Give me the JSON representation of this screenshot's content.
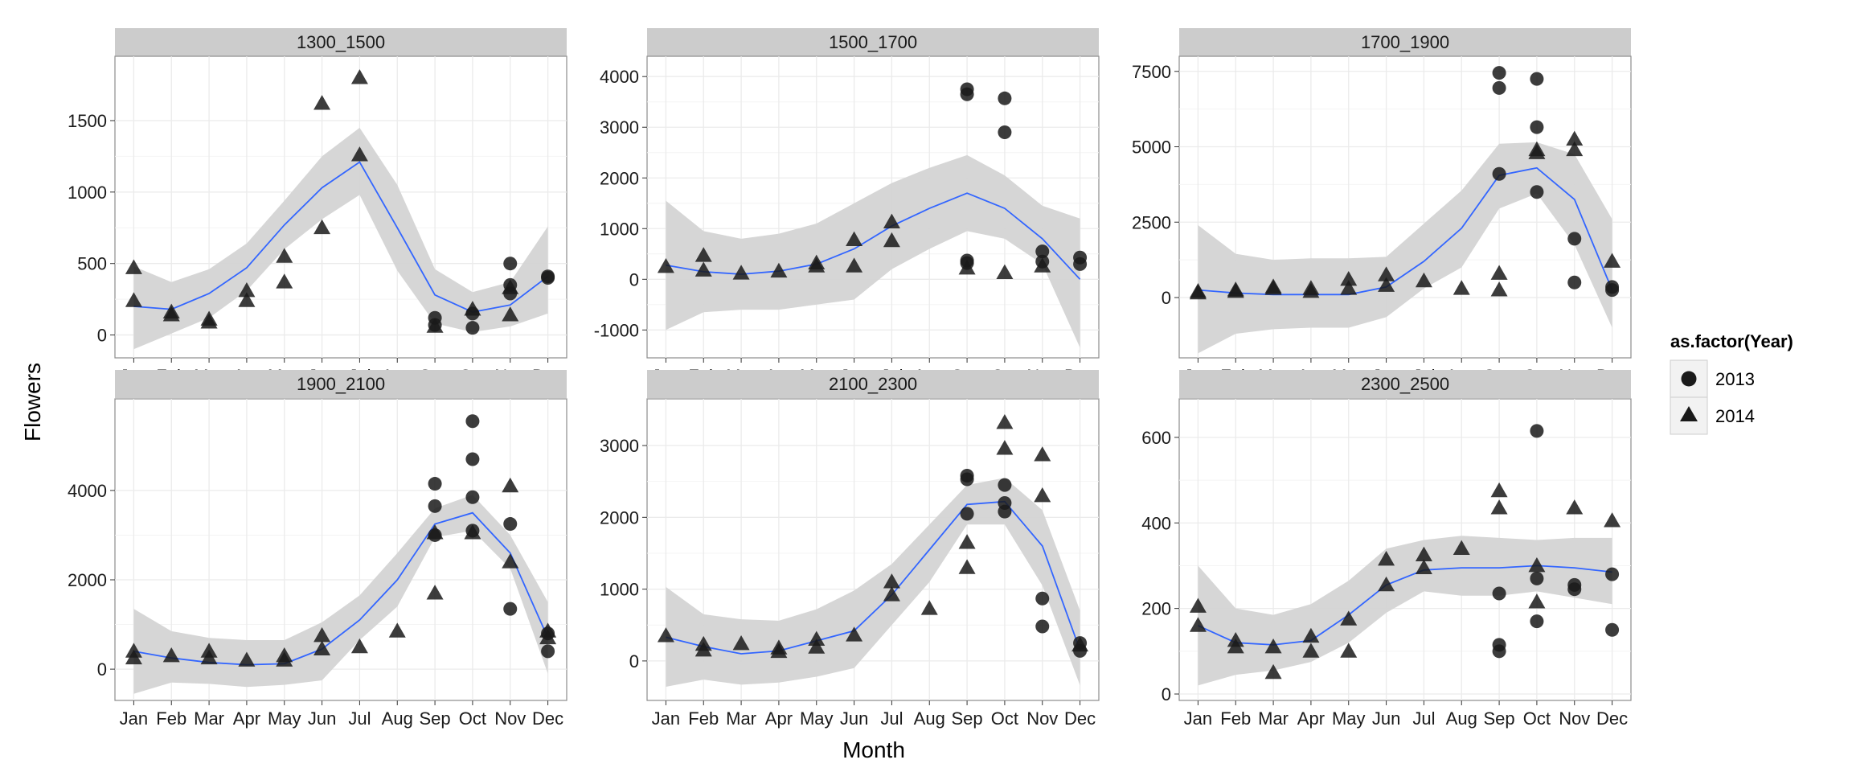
{
  "chart_data": {
    "type": "scatter",
    "facet_type": "faceted scatter with smoothed trend line and confidence band",
    "xlabel": "Month",
    "ylabel": "Flowers",
    "months": [
      "Jan",
      "Feb",
      "Mar",
      "Apr",
      "May",
      "Jun",
      "Jul",
      "Aug",
      "Sep",
      "Oct",
      "Nov",
      "Dec"
    ],
    "legend": {
      "title": "as.factor(Year)",
      "entries": [
        {
          "label": "2013",
          "shape": "circle"
        },
        {
          "label": "2014",
          "shape": "triangle"
        }
      ]
    },
    "colors": {
      "trend": "#3366ff",
      "band": "#d4d4d4",
      "points": "#1a1a1a",
      "strip": "#cccccc",
      "grid": "#ebebeb"
    },
    "panels": [
      {
        "label": "1300_1500",
        "ylim": [
          -160,
          1950
        ],
        "yticks": [
          0,
          500,
          1000,
          1500
        ],
        "trend": [
          200,
          180,
          290,
          470,
          770,
          1030,
          1210,
          750,
          280,
          160,
          210,
          410
        ],
        "band_low": [
          -100,
          10,
          120,
          310,
          600,
          810,
          980,
          450,
          80,
          20,
          60,
          150
        ],
        "band_high": [
          480,
          370,
          460,
          640,
          940,
          1250,
          1450,
          1050,
          460,
          300,
          370,
          760
        ],
        "points_2013": [
          [
            9,
            120
          ],
          [
            9,
            70
          ],
          [
            10,
            50
          ],
          [
            10,
            150
          ],
          [
            11,
            500
          ],
          [
            11,
            290
          ],
          [
            11,
            350
          ],
          [
            12,
            410
          ],
          [
            12,
            400
          ]
        ],
        "points_2014": [
          [
            1,
            470
          ],
          [
            1,
            240
          ],
          [
            2,
            160
          ],
          [
            2,
            140
          ],
          [
            3,
            110
          ],
          [
            3,
            90
          ],
          [
            4,
            310
          ],
          [
            4,
            240
          ],
          [
            5,
            550
          ],
          [
            5,
            370
          ],
          [
            6,
            1620
          ],
          [
            6,
            750
          ],
          [
            7,
            1800
          ],
          [
            7,
            1260
          ],
          [
            9,
            60
          ],
          [
            10,
            180
          ],
          [
            11,
            140
          ],
          [
            11,
            330
          ]
        ]
      },
      {
        "label": "1500_1700",
        "ylim": [
          -1550,
          4400
        ],
        "yticks": [
          -1000,
          0,
          1000,
          2000,
          3000,
          4000
        ],
        "trend": [
          280,
          150,
          100,
          160,
          300,
          600,
          1050,
          1400,
          1700,
          1400,
          800,
          0
        ],
        "band_low": [
          -1000,
          -650,
          -600,
          -600,
          -500,
          -400,
          200,
          600,
          950,
          800,
          300,
          -1350
        ],
        "band_high": [
          1550,
          950,
          800,
          900,
          1100,
          1500,
          1900,
          2200,
          2450,
          2050,
          1450,
          1200
        ],
        "points_2013": [
          [
            9,
            3750
          ],
          [
            9,
            3650
          ],
          [
            9,
            370
          ],
          [
            9,
            320
          ],
          [
            10,
            3570
          ],
          [
            10,
            2900
          ],
          [
            11,
            550
          ],
          [
            11,
            350
          ],
          [
            12,
            430
          ],
          [
            12,
            300
          ]
        ],
        "points_2014": [
          [
            1,
            250
          ],
          [
            2,
            470
          ],
          [
            2,
            180
          ],
          [
            3,
            120
          ],
          [
            4,
            160
          ],
          [
            5,
            260
          ],
          [
            5,
            320
          ],
          [
            6,
            780
          ],
          [
            6,
            260
          ],
          [
            7,
            1130
          ],
          [
            7,
            760
          ],
          [
            9,
            220
          ],
          [
            10,
            130
          ],
          [
            11,
            260
          ]
        ]
      },
      {
        "label": "1700_1900",
        "ylim": [
          -2000,
          8000
        ],
        "yticks": [
          0,
          2500,
          5000,
          7500
        ],
        "trend": [
          250,
          150,
          100,
          100,
          100,
          350,
          1200,
          2300,
          4050,
          4300,
          3250,
          250
        ],
        "band_low": [
          -1850,
          -1200,
          -1050,
          -1000,
          -1000,
          -650,
          300,
          1000,
          2950,
          3450,
          1750,
          -1000
        ],
        "band_high": [
          2400,
          1450,
          1250,
          1300,
          1300,
          1350,
          2450,
          3550,
          5100,
          5150,
          4750,
          2600
        ],
        "points_2013": [
          [
            9,
            7450
          ],
          [
            9,
            6950
          ],
          [
            9,
            4100
          ],
          [
            10,
            7250
          ],
          [
            10,
            5650
          ],
          [
            10,
            3500
          ],
          [
            11,
            1950
          ],
          [
            11,
            500
          ],
          [
            12,
            350
          ],
          [
            12,
            250
          ]
        ],
        "points_2014": [
          [
            1,
            200
          ],
          [
            1,
            150
          ],
          [
            2,
            250
          ],
          [
            2,
            200
          ],
          [
            3,
            350
          ],
          [
            3,
            300
          ],
          [
            4,
            300
          ],
          [
            4,
            200
          ],
          [
            5,
            600
          ],
          [
            5,
            300
          ],
          [
            6,
            750
          ],
          [
            6,
            400
          ],
          [
            7,
            550
          ],
          [
            8,
            300
          ],
          [
            9,
            800
          ],
          [
            9,
            250
          ],
          [
            10,
            4900
          ],
          [
            10,
            4800
          ],
          [
            11,
            5250
          ],
          [
            11,
            4900
          ],
          [
            12,
            1200
          ]
        ]
      },
      {
        "label": "1900_2100",
        "ylim": [
          -700,
          6050
        ],
        "yticks": [
          0,
          2000,
          4000
        ],
        "trend": [
          400,
          250,
          150,
          100,
          120,
          450,
          1100,
          2000,
          3250,
          3500,
          2600,
          700
        ],
        "band_low": [
          -550,
          -300,
          -330,
          -400,
          -350,
          -250,
          650,
          1400,
          2950,
          3100,
          2250,
          -100
        ],
        "band_high": [
          1350,
          850,
          700,
          650,
          650,
          1050,
          1650,
          2600,
          3600,
          3900,
          3000,
          1500
        ],
        "points_2013": [
          [
            9,
            4150
          ],
          [
            9,
            3650
          ],
          [
            9,
            3000
          ],
          [
            10,
            5550
          ],
          [
            10,
            4700
          ],
          [
            10,
            3850
          ],
          [
            10,
            3100
          ],
          [
            11,
            3250
          ],
          [
            11,
            1350
          ],
          [
            12,
            800
          ],
          [
            12,
            400
          ]
        ],
        "points_2014": [
          [
            1,
            400
          ],
          [
            1,
            250
          ],
          [
            2,
            300
          ],
          [
            3,
            400
          ],
          [
            3,
            250
          ],
          [
            4,
            200
          ],
          [
            5,
            300
          ],
          [
            5,
            200
          ],
          [
            6,
            750
          ],
          [
            6,
            450
          ],
          [
            7,
            500
          ],
          [
            8,
            850
          ],
          [
            9,
            1700
          ],
          [
            9,
            3050
          ],
          [
            10,
            3050
          ],
          [
            11,
            4100
          ],
          [
            11,
            2400
          ],
          [
            12,
            850
          ],
          [
            12,
            700
          ]
        ]
      },
      {
        "label": "2100_2300",
        "ylim": [
          -550,
          3650
        ],
        "yticks": [
          0,
          1000,
          2000,
          3000
        ],
        "trend": [
          330,
          200,
          100,
          140,
          280,
          420,
          920,
          1550,
          2180,
          2220,
          1600,
          150
        ],
        "band_low": [
          -360,
          -260,
          -330,
          -300,
          -220,
          -100,
          500,
          1100,
          1900,
          1900,
          1050,
          -340
        ],
        "band_high": [
          1030,
          650,
          580,
          560,
          720,
          980,
          1350,
          1900,
          2450,
          2550,
          2100,
          700
        ],
        "points_2013": [
          [
            9,
            2580
          ],
          [
            9,
            2530
          ],
          [
            9,
            2050
          ],
          [
            10,
            2450
          ],
          [
            10,
            2200
          ],
          [
            10,
            2080
          ],
          [
            11,
            870
          ],
          [
            11,
            480
          ],
          [
            12,
            250
          ],
          [
            12,
            140
          ]
        ],
        "points_2014": [
          [
            1,
            350
          ],
          [
            2,
            230
          ],
          [
            2,
            150
          ],
          [
            3,
            240
          ],
          [
            4,
            180
          ],
          [
            4,
            130
          ],
          [
            5,
            300
          ],
          [
            5,
            190
          ],
          [
            6,
            360
          ],
          [
            7,
            1100
          ],
          [
            7,
            920
          ],
          [
            8,
            730
          ],
          [
            9,
            1650
          ],
          [
            9,
            1300
          ],
          [
            10,
            3320
          ],
          [
            10,
            2960
          ],
          [
            11,
            2870
          ],
          [
            11,
            2300
          ],
          [
            12,
            220
          ]
        ]
      },
      {
        "label": "2300_2500",
        "ylim": [
          -15,
          690
        ],
        "yticks": [
          0,
          200,
          400,
          600
        ],
        "trend": [
          160,
          120,
          115,
          125,
          185,
          255,
          290,
          295,
          295,
          300,
          295,
          285
        ],
        "band_low": [
          20,
          45,
          55,
          75,
          120,
          190,
          240,
          230,
          230,
          240,
          225,
          210
        ],
        "band_high": [
          300,
          200,
          185,
          210,
          265,
          340,
          360,
          370,
          365,
          360,
          365,
          365
        ],
        "points_2013": [
          [
            9,
            235
          ],
          [
            9,
            115
          ],
          [
            9,
            100
          ],
          [
            10,
            615
          ],
          [
            10,
            270
          ],
          [
            10,
            170
          ],
          [
            11,
            255
          ],
          [
            11,
            245
          ],
          [
            12,
            280
          ],
          [
            12,
            150
          ]
        ],
        "points_2014": [
          [
            1,
            205
          ],
          [
            1,
            160
          ],
          [
            2,
            125
          ],
          [
            2,
            110
          ],
          [
            3,
            110
          ],
          [
            3,
            50
          ],
          [
            4,
            135
          ],
          [
            4,
            100
          ],
          [
            5,
            175
          ],
          [
            5,
            100
          ],
          [
            6,
            315
          ],
          [
            6,
            255
          ],
          [
            7,
            325
          ],
          [
            7,
            295
          ],
          [
            8,
            340
          ],
          [
            9,
            475
          ],
          [
            9,
            435
          ],
          [
            10,
            300
          ],
          [
            10,
            215
          ],
          [
            11,
            435
          ],
          [
            12,
            405
          ]
        ]
      }
    ]
  }
}
